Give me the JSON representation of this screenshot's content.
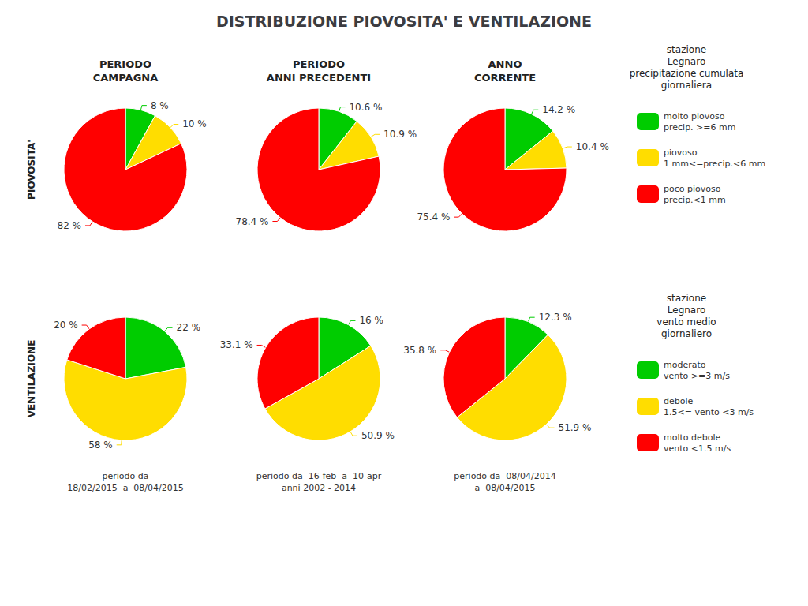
{
  "title": "DISTRIBUZIONE PIOVOSITA' E VENTILAZIONE",
  "chart_data": [
    {
      "type": "pie",
      "title": "PERIODO\nCAMPAGNA",
      "categories": [
        "molto piovoso\nprecip. >=6 mm",
        "piovoso\n1 mm<=precip.<6 mm",
        "poco piovoso\nprecip.<1 mm"
      ],
      "values": [
        8.0,
        10.0,
        82.0
      ],
      "value_labels": [
        "8 %",
        "10 %",
        "82 %"
      ],
      "colors": [
        "#00cc00",
        "#ffdd00",
        "#ff0000"
      ],
      "data_labels": true,
      "legend": "right",
      "annotations": [
        "PIOVOSITA'",
        "stazione\nLegnaro\nprecipitazione cumulata\ngiornaliera"
      ]
    },
    {
      "type": "pie",
      "title": "PERIODO\nANNI PRECEDENTI",
      "categories": [
        "molto piovoso\nprecip. >=6 mm",
        "piovoso\n1 mm<=precip.<6 mm",
        "poco piovoso\nprecip.<1 mm"
      ],
      "values": [
        10.6,
        10.9,
        78.4
      ],
      "value_labels": [
        "10.6 %",
        "10.9 %",
        "78.4 %"
      ],
      "colors": [
        "#00cc00",
        "#ffdd00",
        "#ff0000"
      ],
      "data_labels": true
    },
    {
      "type": "pie",
      "title": "ANNO\nCORRENTE",
      "categories": [
        "molto piovoso\nprecip. >=6 mm",
        "piovoso\n1 mm<=precip.<6 mm",
        "poco piovoso\nprecip.<1 mm"
      ],
      "values": [
        14.2,
        10.4,
        75.4
      ],
      "value_labels": [
        "14.2 %",
        "10.4 %",
        "75.4 %"
      ],
      "colors": [
        "#00cc00",
        "#ffdd00",
        "#ff0000"
      ],
      "data_labels": true
    },
    {
      "type": "pie",
      "subtitle": "periodo da\n18/02/2015  a  08/04/2015",
      "categories": [
        "moderato\nvento >=3 m/s",
        "debole\n1.5<= vento <3 m/s",
        "molto debole\nvento <1.5 m/s"
      ],
      "values": [
        22.0,
        58.0,
        20.0
      ],
      "value_labels": [
        "22 %",
        "58 %",
        "20 %"
      ],
      "colors": [
        "#00cc00",
        "#ffdd00",
        "#ff0000"
      ],
      "data_labels": true,
      "legend": "right",
      "annotations": [
        "VENTILAZIONE",
        "stazione\nLegnaro\nvento medio\ngiornaliero"
      ]
    },
    {
      "type": "pie",
      "subtitle": "periodo da  16-feb  a  10-apr\nanni 2002 - 2014",
      "categories": [
        "moderato\nvento >=3 m/s",
        "debole\n1.5<= vento <3 m/s",
        "molto debole\nvento <1.5 m/s"
      ],
      "values": [
        16.0,
        50.9,
        33.1
      ],
      "value_labels": [
        "16 %",
        "50.9 %",
        "33.1 %"
      ],
      "colors": [
        "#00cc00",
        "#ffdd00",
        "#ff0000"
      ],
      "data_labels": true
    },
    {
      "type": "pie",
      "subtitle": "periodo da  08/04/2014\na  08/04/2015",
      "categories": [
        "moderato\nvento >=3 m/s",
        "debole\n1.5<= vento <3 m/s",
        "molto debole\nvento <1.5 m/s"
      ],
      "values": [
        12.3,
        51.9,
        35.8
      ],
      "value_labels": [
        "12.3 %",
        "51.9 %",
        "35.8 %"
      ],
      "colors": [
        "#00cc00",
        "#ffdd00",
        "#ff0000"
      ],
      "data_labels": true
    }
  ]
}
